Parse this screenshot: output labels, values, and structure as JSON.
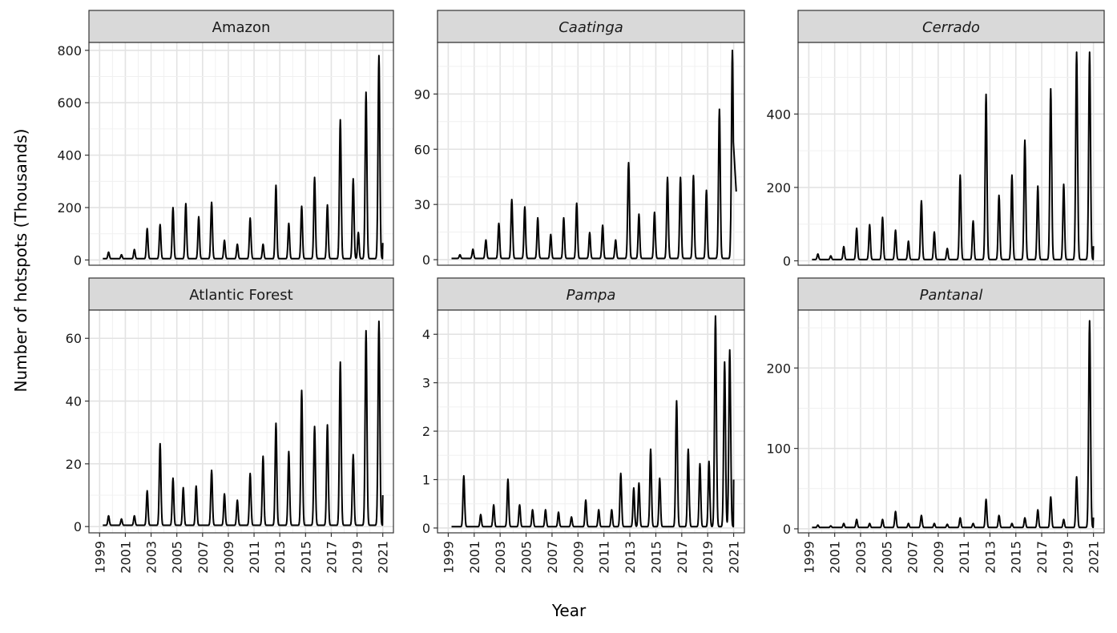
{
  "chart_data": {
    "type": "line",
    "layout": "facet-grid",
    "ylabel": "Number of hotspots (Thousands)",
    "xlabel": "Year",
    "x_tick_labels": [
      "1999",
      "2001",
      "2003",
      "2005",
      "2007",
      "2009",
      "2011",
      "2013",
      "2015",
      "2017",
      "2019",
      "2021"
    ],
    "xlim": [
      1999,
      2021
    ],
    "grid": true,
    "panels": [
      {
        "title": "Amazon",
        "italic": false,
        "ylim": [
          -20,
          830
        ],
        "yticks": [
          0,
          200,
          400,
          600,
          800
        ],
        "peaks": [
          [
            1999.7,
            25
          ],
          [
            2000.7,
            15
          ],
          [
            2001.7,
            35
          ],
          [
            2002.7,
            115
          ],
          [
            2003.7,
            130
          ],
          [
            2004.7,
            195
          ],
          [
            2005.7,
            210
          ],
          [
            2006.7,
            160
          ],
          [
            2007.7,
            215
          ],
          [
            2008.7,
            70
          ],
          [
            2009.7,
            55
          ],
          [
            2010.7,
            155
          ],
          [
            2011.7,
            55
          ],
          [
            2012.7,
            280
          ],
          [
            2013.7,
            135
          ],
          [
            2014.7,
            200
          ],
          [
            2015.7,
            310
          ],
          [
            2016.7,
            205
          ],
          [
            2017.7,
            530
          ],
          [
            2018.7,
            305
          ],
          [
            2019.1,
            100
          ],
          [
            2019.7,
            635
          ],
          [
            2020.7,
            775
          ]
        ],
        "end_value": 65
      },
      {
        "title": "Caatinga",
        "italic": true,
        "ylim": [
          -3,
          118
        ],
        "yticks": [
          0,
          30,
          60,
          90
        ],
        "peaks": [
          [
            1999.9,
            2
          ],
          [
            2000.9,
            5
          ],
          [
            2001.9,
            10
          ],
          [
            2002.9,
            19
          ],
          [
            2003.9,
            32
          ],
          [
            2004.9,
            28
          ],
          [
            2005.9,
            22
          ],
          [
            2006.9,
            13
          ],
          [
            2007.9,
            22
          ],
          [
            2008.9,
            30
          ],
          [
            2009.9,
            14
          ],
          [
            2010.9,
            18
          ],
          [
            2011.9,
            10
          ],
          [
            2012.9,
            52
          ],
          [
            2013.7,
            24
          ],
          [
            2014.9,
            25
          ],
          [
            2015.9,
            44
          ],
          [
            2016.9,
            44
          ],
          [
            2017.9,
            45
          ],
          [
            2018.9,
            37
          ],
          [
            2019.9,
            81
          ],
          [
            2020.9,
            113
          ]
        ],
        "end_value": 37
      },
      {
        "title": "Cerrado",
        "italic": true,
        "ylim": [
          -12,
          595
        ],
        "yticks": [
          0,
          200,
          400
        ],
        "peaks": [
          [
            1999.7,
            15
          ],
          [
            2000.7,
            10
          ],
          [
            2001.7,
            35
          ],
          [
            2002.7,
            85
          ],
          [
            2003.7,
            95
          ],
          [
            2004.7,
            115
          ],
          [
            2005.7,
            80
          ],
          [
            2006.7,
            50
          ],
          [
            2007.7,
            160
          ],
          [
            2008.7,
            75
          ],
          [
            2009.7,
            30
          ],
          [
            2010.7,
            230
          ],
          [
            2011.7,
            105
          ],
          [
            2012.7,
            450
          ],
          [
            2013.7,
            175
          ],
          [
            2014.7,
            230
          ],
          [
            2015.7,
            325
          ],
          [
            2016.7,
            200
          ],
          [
            2017.7,
            465
          ],
          [
            2018.7,
            205
          ],
          [
            2019.7,
            565
          ],
          [
            2020.7,
            565
          ]
        ],
        "end_value": 40
      },
      {
        "title": "Atlantic Forest",
        "italic": false,
        "ylim": [
          -2,
          69
        ],
        "yticks": [
          0,
          20,
          40,
          60
        ],
        "peaks": [
          [
            1999.7,
            3
          ],
          [
            2000.7,
            2
          ],
          [
            2001.7,
            3
          ],
          [
            2002.7,
            11
          ],
          [
            2003.7,
            26
          ],
          [
            2004.7,
            15
          ],
          [
            2005.5,
            12
          ],
          [
            2006.5,
            12.5
          ],
          [
            2007.7,
            17.5
          ],
          [
            2008.7,
            10
          ],
          [
            2009.7,
            8
          ],
          [
            2010.7,
            16.5
          ],
          [
            2011.7,
            22
          ],
          [
            2012.7,
            32.5
          ],
          [
            2013.7,
            23.5
          ],
          [
            2014.7,
            43
          ],
          [
            2015.7,
            31.5
          ],
          [
            2016.7,
            32
          ],
          [
            2017.7,
            52
          ],
          [
            2018.7,
            22.5
          ],
          [
            2019.7,
            62
          ],
          [
            2020.7,
            65
          ]
        ],
        "end_value": 10
      },
      {
        "title": "Pampa",
        "italic": true,
        "ylim": [
          -0.1,
          4.5
        ],
        "yticks": [
          0,
          1,
          2,
          3,
          4
        ],
        "peaks": [
          [
            2000.2,
            1.05
          ],
          [
            2001.5,
            0.25
          ],
          [
            2002.5,
            0.45
          ],
          [
            2003.6,
            0.98
          ],
          [
            2004.5,
            0.45
          ],
          [
            2005.5,
            0.35
          ],
          [
            2006.5,
            0.35
          ],
          [
            2007.5,
            0.3
          ],
          [
            2008.5,
            0.2
          ],
          [
            2009.6,
            0.55
          ],
          [
            2010.6,
            0.35
          ],
          [
            2011.6,
            0.35
          ],
          [
            2012.3,
            1.1
          ],
          [
            2013.3,
            0.8
          ],
          [
            2013.7,
            0.9
          ],
          [
            2014.6,
            1.6
          ],
          [
            2015.3,
            1.0
          ],
          [
            2016.6,
            2.6
          ],
          [
            2017.5,
            1.6
          ],
          [
            2018.4,
            1.3
          ],
          [
            2019.1,
            1.35
          ],
          [
            2019.6,
            4.35
          ],
          [
            2020.3,
            3.4
          ],
          [
            2020.7,
            3.65
          ]
        ],
        "end_value": 1.0
      },
      {
        "title": "Pantanal",
        "italic": true,
        "ylim": [
          -5,
          272
        ],
        "yticks": [
          0,
          100,
          200
        ],
        "peaks": [
          [
            1999.7,
            3
          ],
          [
            2000.7,
            2
          ],
          [
            2001.7,
            5
          ],
          [
            2002.7,
            10
          ],
          [
            2003.7,
            5
          ],
          [
            2004.7,
            10
          ],
          [
            2005.7,
            20
          ],
          [
            2006.7,
            5
          ],
          [
            2007.7,
            15
          ],
          [
            2008.7,
            5
          ],
          [
            2009.7,
            4
          ],
          [
            2010.7,
            12
          ],
          [
            2011.7,
            5
          ],
          [
            2012.7,
            35
          ],
          [
            2013.7,
            15
          ],
          [
            2014.7,
            5
          ],
          [
            2015.7,
            12
          ],
          [
            2016.7,
            22
          ],
          [
            2017.7,
            38
          ],
          [
            2018.7,
            10
          ],
          [
            2019.7,
            63
          ],
          [
            2020.7,
            257
          ]
        ],
        "end_value": 14
      }
    ]
  }
}
